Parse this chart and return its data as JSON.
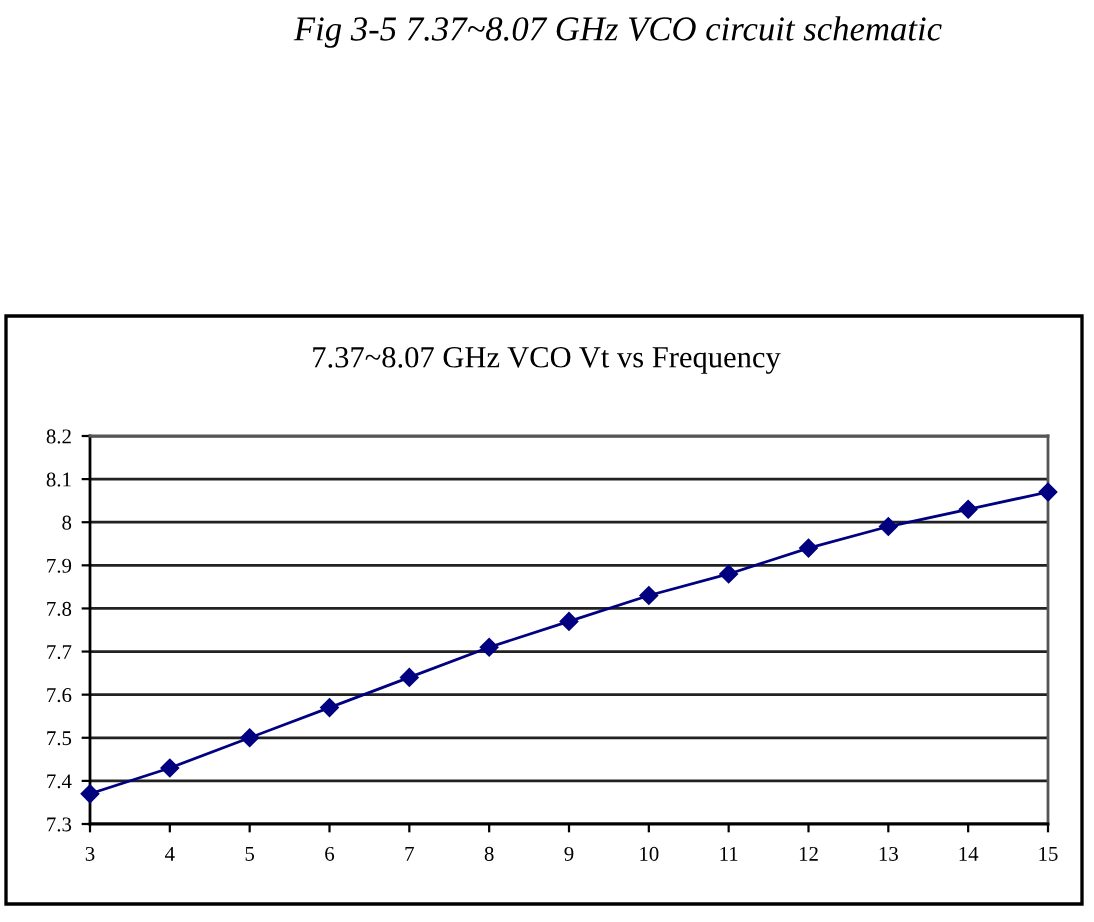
{
  "chart_data": {
    "type": "line",
    "title": "7.37~8.07 GHz VCO Vt vs Frequency",
    "annotations": [
      "Fig 3-5 7.37~8.07 GHz VCO circuit schematic"
    ],
    "x": [
      3,
      4,
      5,
      6,
      7,
      8,
      9,
      10,
      11,
      12,
      13,
      14,
      15
    ],
    "series": [
      {
        "color": "#000080",
        "values": [
          7.37,
          7.43,
          7.5,
          7.57,
          7.64,
          7.71,
          7.77,
          7.83,
          7.88,
          7.94,
          7.99,
          8.03,
          8.07
        ]
      }
    ],
    "xlim": [
      3,
      15
    ],
    "xticks": [
      3,
      4,
      5,
      6,
      7,
      8,
      9,
      10,
      11,
      12,
      13,
      14,
      15
    ],
    "ylim": [
      7.3,
      8.2
    ],
    "yticks": [
      7.3,
      7.4,
      7.5,
      7.6,
      7.7,
      7.8,
      7.9,
      8,
      8.1,
      8.2
    ],
    "grid": "y",
    "legend": false,
    "marker": "diamond",
    "line_style": "solid"
  }
}
